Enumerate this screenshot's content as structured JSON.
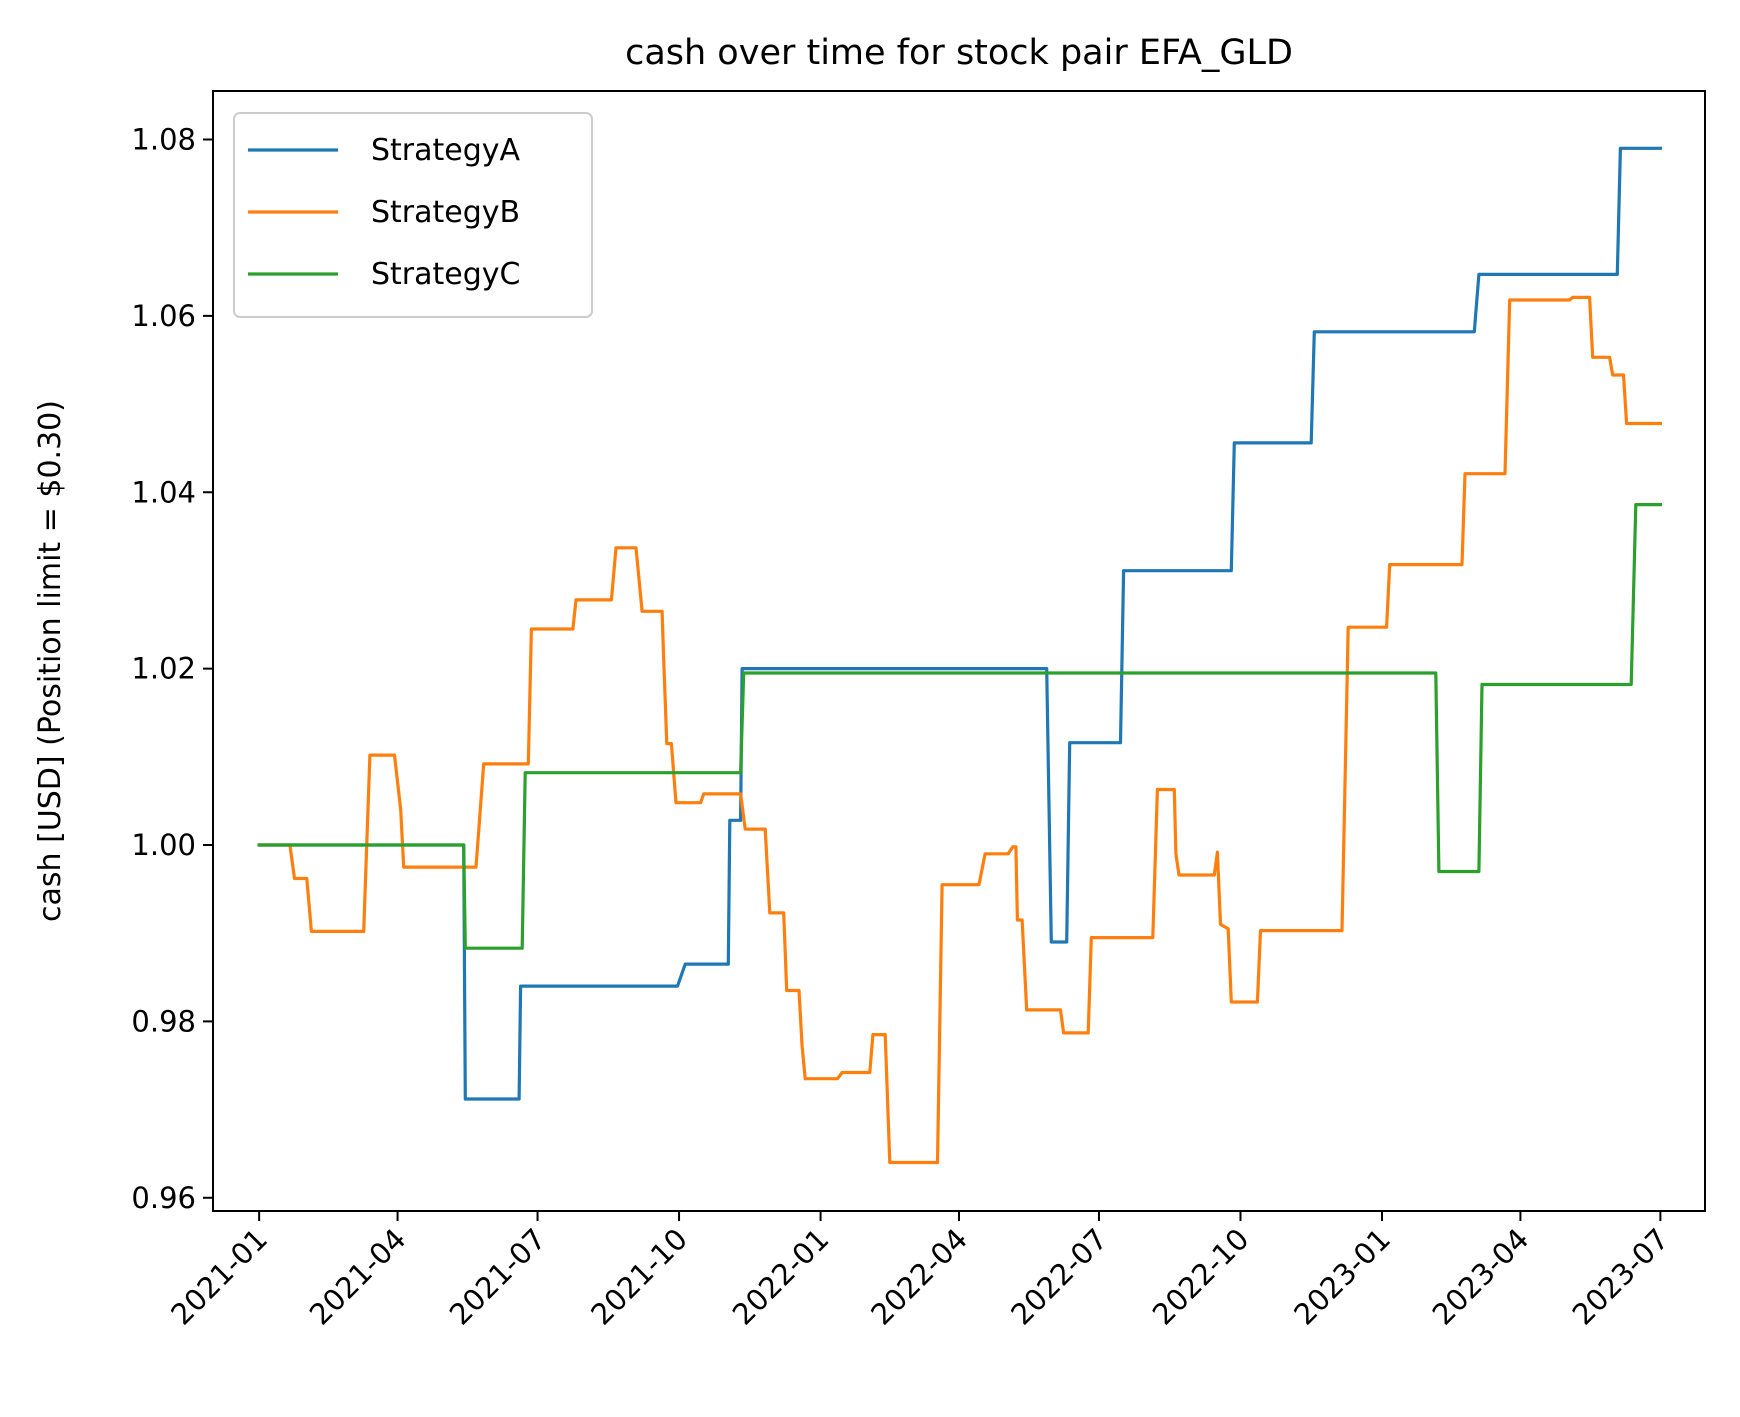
{
  "chart_data": {
    "type": "line",
    "title": "cash over time for stock pair EFA_GLD",
    "xlabel": "",
    "ylabel": "cash [USD] (Position limit = $0.30)",
    "xlim": [
      "2020-12-02",
      "2023-07-30"
    ],
    "ylim": [
      0.9585,
      1.0855
    ],
    "x_ticks": [
      "2021-01",
      "2021-04",
      "2021-07",
      "2021-10",
      "2022-01",
      "2022-04",
      "2022-07",
      "2022-10",
      "2023-01",
      "2023-04",
      "2023-07"
    ],
    "y_ticks": [
      0.96,
      0.98,
      1.0,
      1.02,
      1.04,
      1.06,
      1.08
    ],
    "y_tick_labels": [
      "0.96",
      "0.98",
      "1.00",
      "1.02",
      "1.04",
      "1.06",
      "1.08"
    ],
    "grid": false,
    "legend_position": "upper-left",
    "series": [
      {
        "name": "StrategyA",
        "color": "#1f77b4",
        "points": [
          [
            "2021-01-01",
            1.0
          ],
          [
            "2021-05-14",
            1.0
          ],
          [
            "2021-05-15",
            0.9712
          ],
          [
            "2021-06-19",
            0.9712
          ],
          [
            "2021-06-20",
            0.984
          ],
          [
            "2021-09-30",
            0.984
          ],
          [
            "2021-10-05",
            0.9865
          ],
          [
            "2021-11-02",
            0.9865
          ],
          [
            "2021-11-03",
            1.0028
          ],
          [
            "2021-11-10",
            1.0028
          ],
          [
            "2021-11-11",
            1.02
          ],
          [
            "2022-05-28",
            1.02
          ],
          [
            "2022-05-31",
            0.989
          ],
          [
            "2022-06-10",
            0.989
          ],
          [
            "2022-06-12",
            1.0116
          ],
          [
            "2022-07-15",
            1.0116
          ],
          [
            "2022-07-17",
            1.0311
          ],
          [
            "2022-09-25",
            1.0311
          ],
          [
            "2022-09-27",
            1.0456
          ],
          [
            "2022-11-16",
            1.0456
          ],
          [
            "2022-11-18",
            1.0582
          ],
          [
            "2023-03-02",
            1.0582
          ],
          [
            "2023-03-05",
            1.0647
          ],
          [
            "2023-06-03",
            1.0647
          ],
          [
            "2023-06-05",
            1.079
          ],
          [
            "2023-07-01",
            1.079
          ]
        ]
      },
      {
        "name": "StrategyB",
        "color": "#ff7f0e",
        "points": [
          [
            "2021-01-01",
            1.0
          ],
          [
            "2021-01-21",
            1.0
          ],
          [
            "2021-01-24",
            0.9962
          ],
          [
            "2021-02-01",
            0.9962
          ],
          [
            "2021-02-04",
            0.9902
          ],
          [
            "2021-03-10",
            0.9902
          ],
          [
            "2021-03-14",
            1.0102
          ],
          [
            "2021-03-30",
            1.0102
          ],
          [
            "2021-04-03",
            1.004
          ],
          [
            "2021-04-05",
            0.9975
          ],
          [
            "2021-05-22",
            0.9975
          ],
          [
            "2021-05-27",
            1.0092
          ],
          [
            "2021-06-25",
            1.0092
          ],
          [
            "2021-06-27",
            1.0245
          ],
          [
            "2021-07-24",
            1.0245
          ],
          [
            "2021-07-26",
            1.0278
          ],
          [
            "2021-08-18",
            1.0278
          ],
          [
            "2021-08-21",
            1.0337
          ],
          [
            "2021-09-03",
            1.0337
          ],
          [
            "2021-09-07",
            1.0265
          ],
          [
            "2021-09-20",
            1.0265
          ],
          [
            "2021-09-21",
            1.021
          ],
          [
            "2021-09-23",
            1.0115
          ],
          [
            "2021-09-26",
            1.0115
          ],
          [
            "2021-09-29",
            1.0048
          ],
          [
            "2021-10-15",
            1.0048
          ],
          [
            "2021-10-17",
            1.0058
          ],
          [
            "2021-11-10",
            1.0058
          ],
          [
            "2021-11-13",
            1.0018
          ],
          [
            "2021-11-26",
            1.0018
          ],
          [
            "2021-11-29",
            0.9923
          ],
          [
            "2021-12-08",
            0.9923
          ],
          [
            "2021-12-10",
            0.9835
          ],
          [
            "2021-12-18",
            0.9835
          ],
          [
            "2021-12-20",
            0.9772
          ],
          [
            "2021-12-22",
            0.9735
          ],
          [
            "2022-01-12",
            0.9735
          ],
          [
            "2022-01-15",
            0.9742
          ],
          [
            "2022-02-02",
            0.9742
          ],
          [
            "2022-02-04",
            0.9785
          ],
          [
            "2022-02-12",
            0.9785
          ],
          [
            "2022-02-15",
            0.964
          ],
          [
            "2022-03-18",
            0.964
          ],
          [
            "2022-03-21",
            0.9955
          ],
          [
            "2022-04-14",
            0.9955
          ],
          [
            "2022-04-18",
            0.999
          ],
          [
            "2022-05-03",
            0.999
          ],
          [
            "2022-05-06",
            0.9998
          ],
          [
            "2022-05-08",
            0.9998
          ],
          [
            "2022-05-09",
            0.9915
          ],
          [
            "2022-05-12",
            0.9915
          ],
          [
            "2022-05-15",
            0.9813
          ],
          [
            "2022-06-06",
            0.9813
          ],
          [
            "2022-06-08",
            0.9787
          ],
          [
            "2022-06-24",
            0.9787
          ],
          [
            "2022-06-26",
            0.9895
          ],
          [
            "2022-08-05",
            0.9895
          ],
          [
            "2022-08-08",
            1.0063
          ],
          [
            "2022-08-19",
            1.0063
          ],
          [
            "2022-08-20",
            0.999
          ],
          [
            "2022-08-22",
            0.9966
          ],
          [
            "2022-09-14",
            0.9966
          ],
          [
            "2022-09-16",
            0.9992
          ],
          [
            "2022-09-18",
            0.991
          ],
          [
            "2022-09-23",
            0.9905
          ],
          [
            "2022-09-25",
            0.9822
          ],
          [
            "2022-10-12",
            0.9822
          ],
          [
            "2022-10-14",
            0.9903
          ],
          [
            "2022-12-06",
            0.9903
          ],
          [
            "2022-12-10",
            1.0247
          ],
          [
            "2023-01-04",
            1.0247
          ],
          [
            "2023-01-06",
            1.0318
          ],
          [
            "2023-02-22",
            1.0318
          ],
          [
            "2023-02-24",
            1.0421
          ],
          [
            "2023-03-22",
            1.0421
          ],
          [
            "2023-03-25",
            1.0618
          ],
          [
            "2023-05-03",
            1.0618
          ],
          [
            "2023-05-05",
            1.0621
          ],
          [
            "2023-05-16",
            1.0621
          ],
          [
            "2023-05-18",
            1.0553
          ],
          [
            "2023-05-29",
            1.0553
          ],
          [
            "2023-05-31",
            1.0533
          ],
          [
            "2023-06-07",
            1.0533
          ],
          [
            "2023-06-09",
            1.0478
          ],
          [
            "2023-07-01",
            1.0478
          ]
        ]
      },
      {
        "name": "StrategyC",
        "color": "#2ca02c",
        "points": [
          [
            "2021-01-01",
            1.0
          ],
          [
            "2021-05-14",
            1.0
          ],
          [
            "2021-05-15",
            0.9883
          ],
          [
            "2021-06-21",
            0.9883
          ],
          [
            "2021-06-23",
            1.0082
          ],
          [
            "2021-11-10",
            1.0082
          ],
          [
            "2021-11-12",
            1.0195
          ],
          [
            "2023-02-05",
            1.0195
          ],
          [
            "2023-02-07",
            0.997
          ],
          [
            "2023-03-05",
            0.997
          ],
          [
            "2023-03-07",
            1.0182
          ],
          [
            "2023-06-12",
            1.0182
          ],
          [
            "2023-06-15",
            1.0386
          ],
          [
            "2023-07-01",
            1.0386
          ]
        ]
      }
    ]
  }
}
